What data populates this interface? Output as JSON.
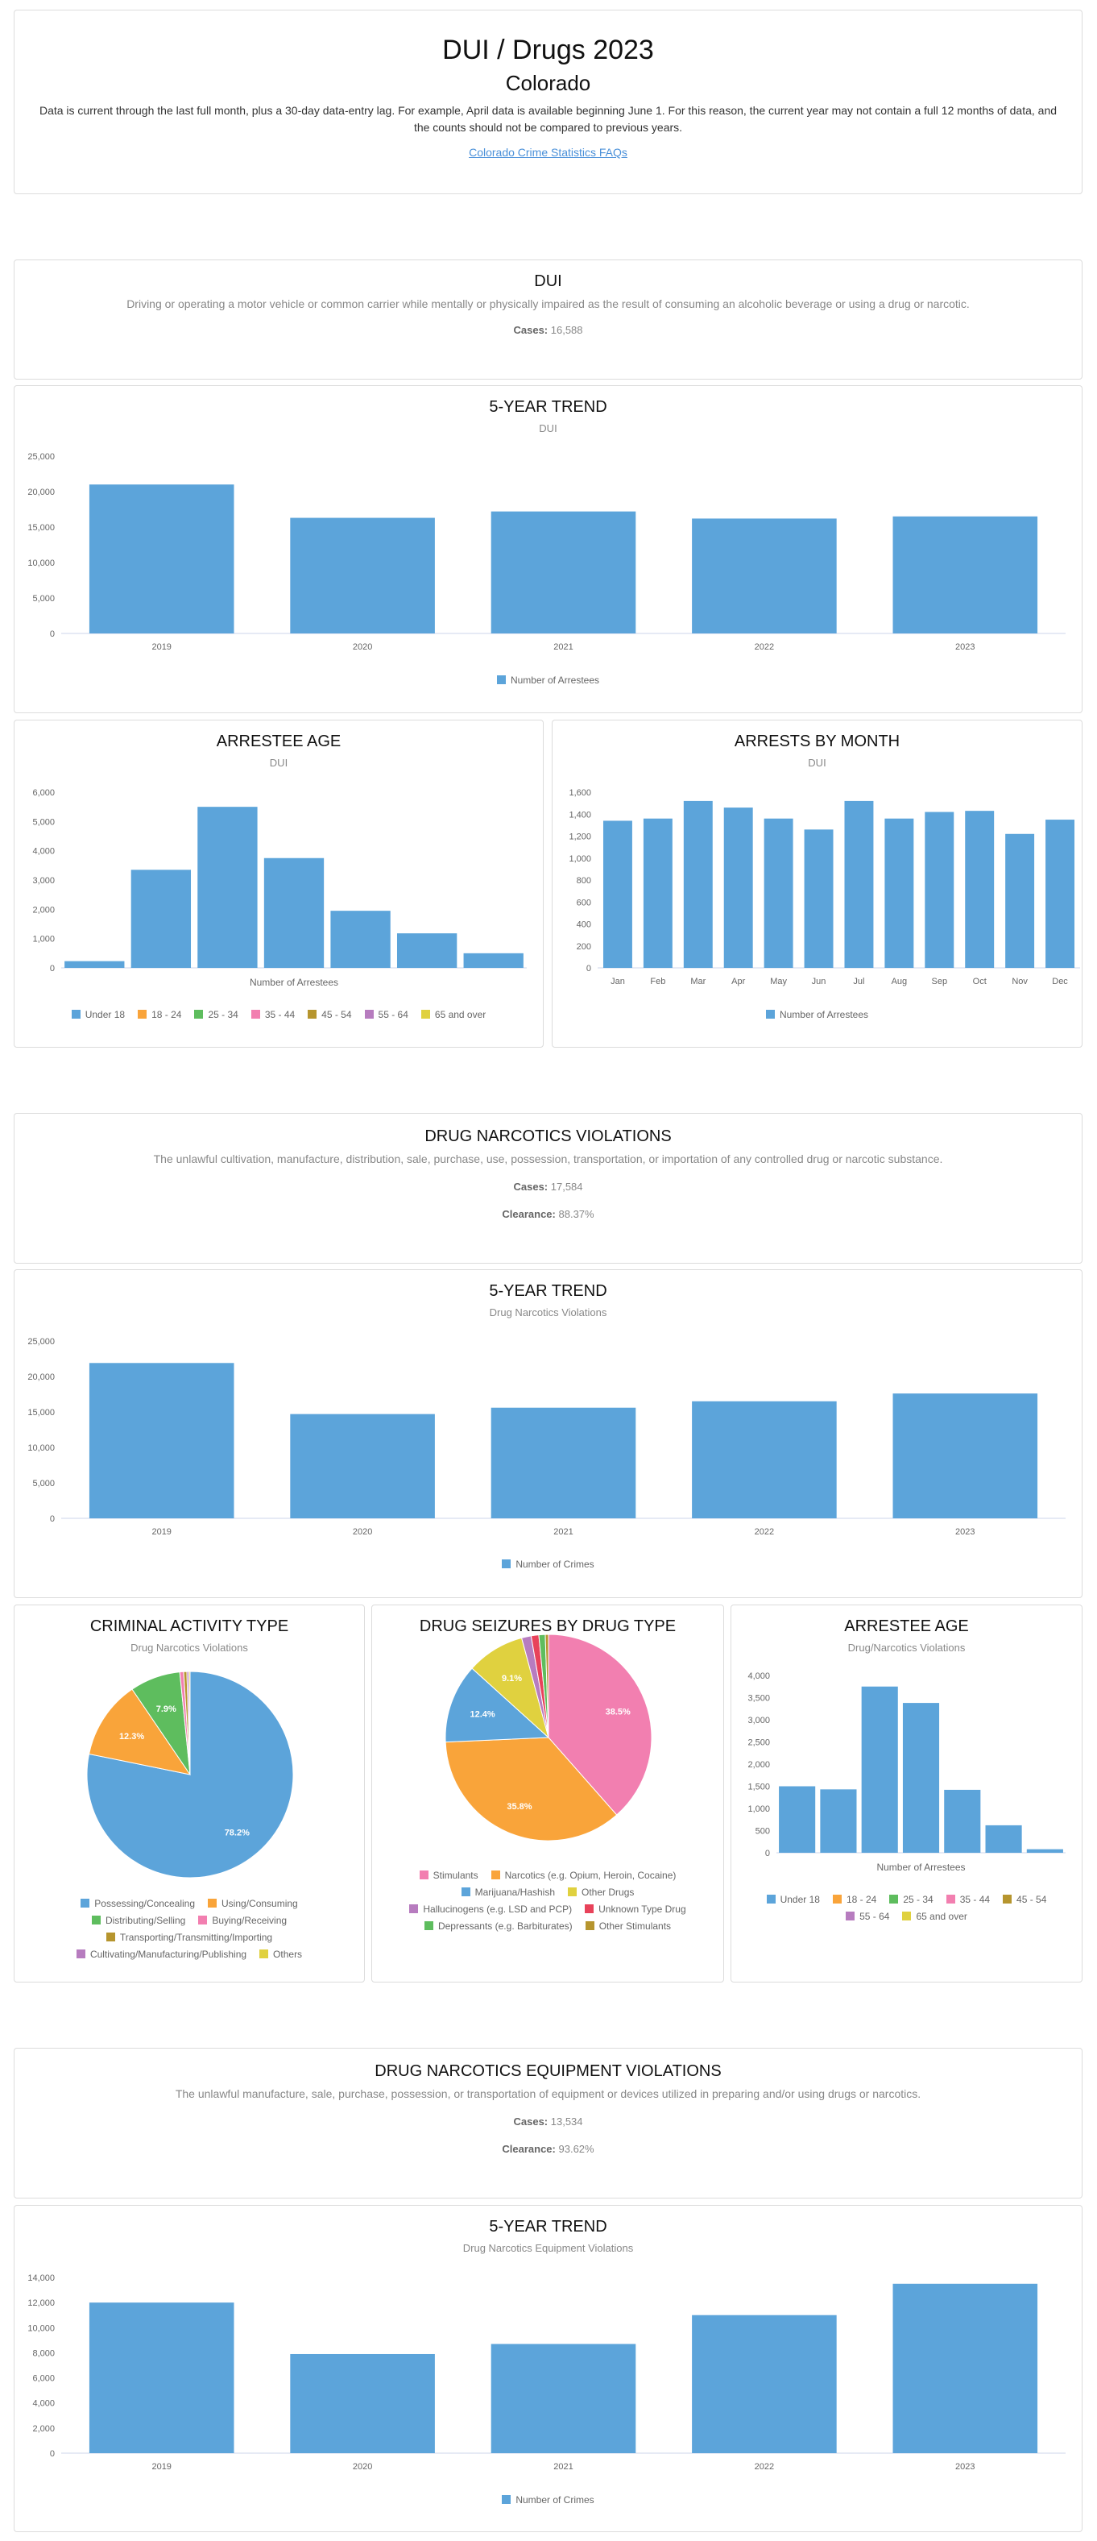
{
  "header": {
    "title": "DUI / Drugs 2023",
    "subtitle": "Colorado",
    "note": "Data is current through the last full month, plus a 30-day data-entry lag. For example, April data is available beginning June 1. For this reason, the current year may not contain a full 12 months of data, and the counts should not be compared to previous years.",
    "link": "Colorado Crime Statistics FAQs"
  },
  "colors": {
    "blue": "#5ca4da",
    "orange": "#f9a43a",
    "green": "#5ebd5e",
    "pink": "#f27fb0",
    "olive": "#b6952e",
    "purple": "#b77cbf",
    "yellow": "#e0d13f",
    "red": "#e8425a"
  },
  "sections": {
    "dui": {
      "title": "DUI",
      "description": "Driving or operating a motor vehicle or common carrier while mentally or physically impaired as the result of consuming an alcoholic beverage or using a drug or narcotic.",
      "cases_label": "Cases:",
      "cases": "16,588"
    },
    "drug": {
      "title": "DRUG NARCOTICS VIOLATIONS",
      "description": "The unlawful cultivation, manufacture, distribution, sale, purchase, use, possession, transportation, or importation of any controlled drug or narcotic substance.",
      "cases_label": "Cases:",
      "cases": "17,584",
      "clearance_label": "Clearance:",
      "clearance": "88.37%"
    },
    "equipment": {
      "title": "DRUG NARCOTICS EQUIPMENT VIOLATIONS",
      "description": "The unlawful manufacture, sale, purchase, possession, or transportation of equipment or devices utilized in preparing and/or using drugs or narcotics.",
      "cases_label": "Cases:",
      "cases": "13,534",
      "clearance_label": "Clearance:",
      "clearance": "93.62%"
    }
  },
  "chart_data": [
    {
      "id": "dui_trend",
      "type": "bar",
      "title": "5-YEAR TREND",
      "subtitle": "DUI",
      "categories": [
        "2019",
        "2020",
        "2021",
        "2022",
        "2023"
      ],
      "series": [
        {
          "name": "Number of Arrestees",
          "values": [
            21000,
            16300,
            17200,
            16200,
            16500
          ]
        }
      ],
      "ylim": [
        0,
        25000
      ],
      "yticks": [
        "0",
        "5,000",
        "10,000",
        "15,000",
        "20,000",
        "25,000"
      ],
      "legend": "bottom"
    },
    {
      "id": "dui_age",
      "type": "bar",
      "title": "ARRESTEE AGE",
      "subtitle": "DUI",
      "xlabel": "Number of Arrestees",
      "categories": [
        "Under 18",
        "18 - 24",
        "25 - 34",
        "35 - 44",
        "45 - 54",
        "55 - 64",
        "65 and over"
      ],
      "values": [
        230,
        3350,
        5500,
        3750,
        1950,
        1180,
        500
      ],
      "ylim": [
        0,
        6000
      ],
      "yticks": [
        "0",
        "1,000",
        "2,000",
        "3,000",
        "4,000",
        "5,000",
        "6,000"
      ],
      "legend": "bottom"
    },
    {
      "id": "dui_month",
      "type": "bar",
      "title": "ARRESTS BY MONTH",
      "subtitle": "DUI",
      "categories": [
        "Jan",
        "Feb",
        "Mar",
        "Apr",
        "May",
        "Jun",
        "Jul",
        "Aug",
        "Sep",
        "Oct",
        "Nov",
        "Dec"
      ],
      "series": [
        {
          "name": "Number of Arrestees",
          "values": [
            1340,
            1360,
            1520,
            1460,
            1360,
            1260,
            1520,
            1360,
            1420,
            1430,
            1220,
            1350
          ]
        }
      ],
      "ylim": [
        0,
        1600
      ],
      "yticks": [
        "0",
        "200",
        "400",
        "600",
        "800",
        "1,000",
        "1,200",
        "1,400",
        "1,600"
      ],
      "legend": "bottom"
    },
    {
      "id": "drug_trend",
      "type": "bar",
      "title": "5-YEAR TREND",
      "subtitle": "Drug Narcotics Violations",
      "categories": [
        "2019",
        "2020",
        "2021",
        "2022",
        "2023"
      ],
      "series": [
        {
          "name": "Number of Crimes",
          "values": [
            21900,
            14700,
            15600,
            16500,
            17600
          ]
        }
      ],
      "ylim": [
        0,
        25000
      ],
      "yticks": [
        "0",
        "5,000",
        "10,000",
        "15,000",
        "20,000",
        "25,000"
      ],
      "legend": "bottom"
    },
    {
      "id": "criminal_activity",
      "type": "pie",
      "title": "CRIMINAL ACTIVITY TYPE",
      "subtitle": "Drug Narcotics Violations",
      "categories": [
        "Possessing/Concealing",
        "Using/Consuming",
        "Distributing/Selling",
        "Buying/Receiving",
        "Transporting/Transmitting/Importing",
        "Cultivating/Manufacturing/Publishing",
        "Others"
      ],
      "values": [
        78.2,
        12.3,
        7.9,
        0.6,
        0.5,
        0.3,
        0.2
      ],
      "data_labels": [
        "78.2%",
        "12.3%",
        "7.9%",
        "",
        "",
        "",
        ""
      ],
      "legend": "bottom"
    },
    {
      "id": "drug_seizures",
      "type": "pie",
      "title": "DRUG SEIZURES BY DRUG TYPE",
      "subtitle": "",
      "categories": [
        "Stimulants",
        "Narcotics (e.g. Opium, Heroin, Cocaine)",
        "Marijuana/Hashish",
        "Other Drugs",
        "Hallucinogens (e.g. LSD and PCP)",
        "Unknown Type Drug",
        "Depressants (e.g. Barbiturates)",
        "Other Stimulants"
      ],
      "values": [
        38.5,
        35.8,
        12.4,
        9.1,
        1.5,
        1.2,
        1.0,
        0.5
      ],
      "data_labels": [
        "38.5%",
        "35.8%",
        "12.4%",
        "9.1%",
        "",
        "",
        "",
        ""
      ],
      "legend": "bottom"
    },
    {
      "id": "drug_age",
      "type": "bar",
      "title": "ARRESTEE AGE",
      "subtitle": "Drug/Narcotics Violations",
      "xlabel": "Number of Arrestees",
      "categories": [
        "Under 18",
        "18 - 24",
        "25 - 34",
        "35 - 44",
        "45 - 54",
        "55 - 64",
        "65 and over"
      ],
      "values": [
        1500,
        1430,
        3750,
        3380,
        1420,
        620,
        80
      ],
      "ylim": [
        0,
        4000
      ],
      "yticks": [
        "0",
        "500",
        "1,000",
        "1,500",
        "2,000",
        "2,500",
        "3,000",
        "3,500",
        "4,000"
      ],
      "legend": "bottom"
    },
    {
      "id": "equip_trend",
      "type": "bar",
      "title": "5-YEAR TREND",
      "subtitle": "Drug Narcotics Equipment Violations",
      "categories": [
        "2019",
        "2020",
        "2021",
        "2022",
        "2023"
      ],
      "series": [
        {
          "name": "Number of Crimes",
          "values": [
            12000,
            7900,
            8700,
            11000,
            13500
          ]
        }
      ],
      "ylim": [
        0,
        14000
      ],
      "yticks": [
        "0",
        "2,000",
        "4,000",
        "6,000",
        "8,000",
        "10,000",
        "12,000",
        "14,000"
      ],
      "legend": "bottom"
    }
  ]
}
